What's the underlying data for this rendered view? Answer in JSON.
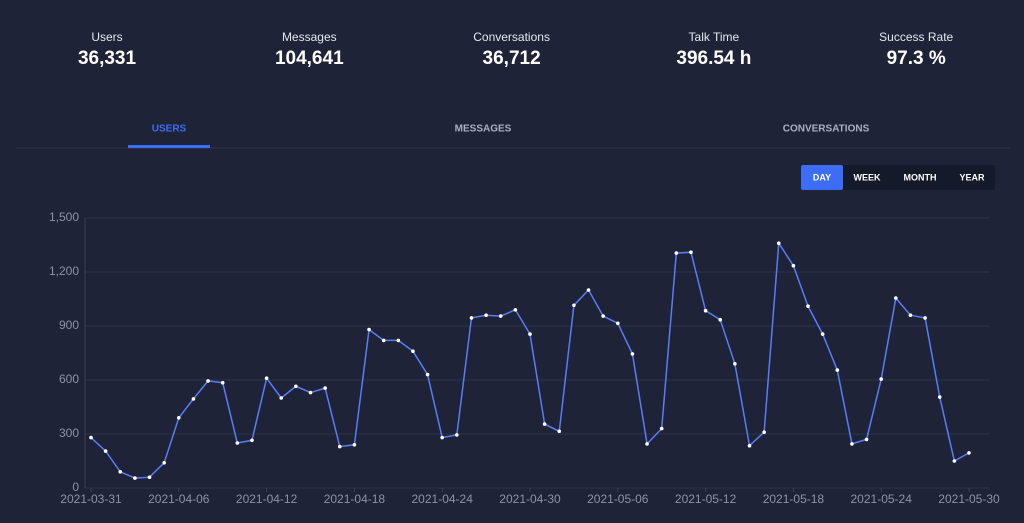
{
  "stats": [
    {
      "label": "Users",
      "value": "36,331"
    },
    {
      "label": "Messages",
      "value": "104,641"
    },
    {
      "label": "Conversations",
      "value": "36,712"
    },
    {
      "label": "Talk Time",
      "value": "396.54 h"
    },
    {
      "label": "Success Rate",
      "value": "97.3 %"
    }
  ],
  "tabs": [
    "USERS",
    "MESSAGES",
    "CONVERSATIONS"
  ],
  "ranges": [
    "DAY",
    "WEEK",
    "MONTH",
    "YEAR"
  ],
  "chart_data": {
    "type": "line",
    "x": [
      "2021-03-31",
      "2021-04-01",
      "2021-04-02",
      "2021-04-03",
      "2021-04-04",
      "2021-04-05",
      "2021-04-06",
      "2021-04-07",
      "2021-04-08",
      "2021-04-09",
      "2021-04-10",
      "2021-04-11",
      "2021-04-12",
      "2021-04-13",
      "2021-04-14",
      "2021-04-15",
      "2021-04-16",
      "2021-04-17",
      "2021-04-18",
      "2021-04-19",
      "2021-04-20",
      "2021-04-21",
      "2021-04-22",
      "2021-04-23",
      "2021-04-24",
      "2021-04-25",
      "2021-04-26",
      "2021-04-27",
      "2021-04-28",
      "2021-04-29",
      "2021-04-30",
      "2021-05-01",
      "2021-05-02",
      "2021-05-03",
      "2021-05-04",
      "2021-05-05",
      "2021-05-06",
      "2021-05-07",
      "2021-05-08",
      "2021-05-09",
      "2021-05-10",
      "2021-05-11",
      "2021-05-12",
      "2021-05-13",
      "2021-05-14",
      "2021-05-15",
      "2021-05-16",
      "2021-05-17",
      "2021-05-18",
      "2021-05-19",
      "2021-05-20",
      "2021-05-21",
      "2021-05-22",
      "2021-05-23",
      "2021-05-24",
      "2021-05-25",
      "2021-05-26",
      "2021-05-27",
      "2021-05-28",
      "2021-05-29",
      "2021-05-30"
    ],
    "series": [
      {
        "name": "Users",
        "color": "#5b7cf7",
        "values": [
          280,
          205,
          90,
          55,
          60,
          140,
          390,
          495,
          595,
          585,
          250,
          265,
          610,
          500,
          565,
          530,
          555,
          230,
          240,
          880,
          820,
          820,
          760,
          630,
          280,
          295,
          945,
          960,
          955,
          990,
          855,
          355,
          315,
          1015,
          1100,
          955,
          915,
          745,
          245,
          330,
          1305,
          1310,
          985,
          935,
          690,
          235,
          310,
          1360,
          1235,
          1010,
          855,
          655,
          245,
          270,
          605,
          1055,
          960,
          945,
          505,
          150,
          195
        ]
      }
    ],
    "xlim": [
      "2021-03-31",
      "2021-05-30"
    ],
    "xticks": [
      "2021-03-31",
      "2021-04-06",
      "2021-04-12",
      "2021-04-18",
      "2021-04-24",
      "2021-04-30",
      "2021-05-06",
      "2021-05-12",
      "2021-05-18",
      "2021-05-24",
      "2021-05-30"
    ],
    "ylim": [
      0,
      1500
    ],
    "yticks": [
      0,
      300,
      600,
      900,
      {
        "value": 1200,
        "label": "1,200"
      },
      {
        "value": 1500,
        "label": "1,500"
      }
    ],
    "grid": true
  }
}
